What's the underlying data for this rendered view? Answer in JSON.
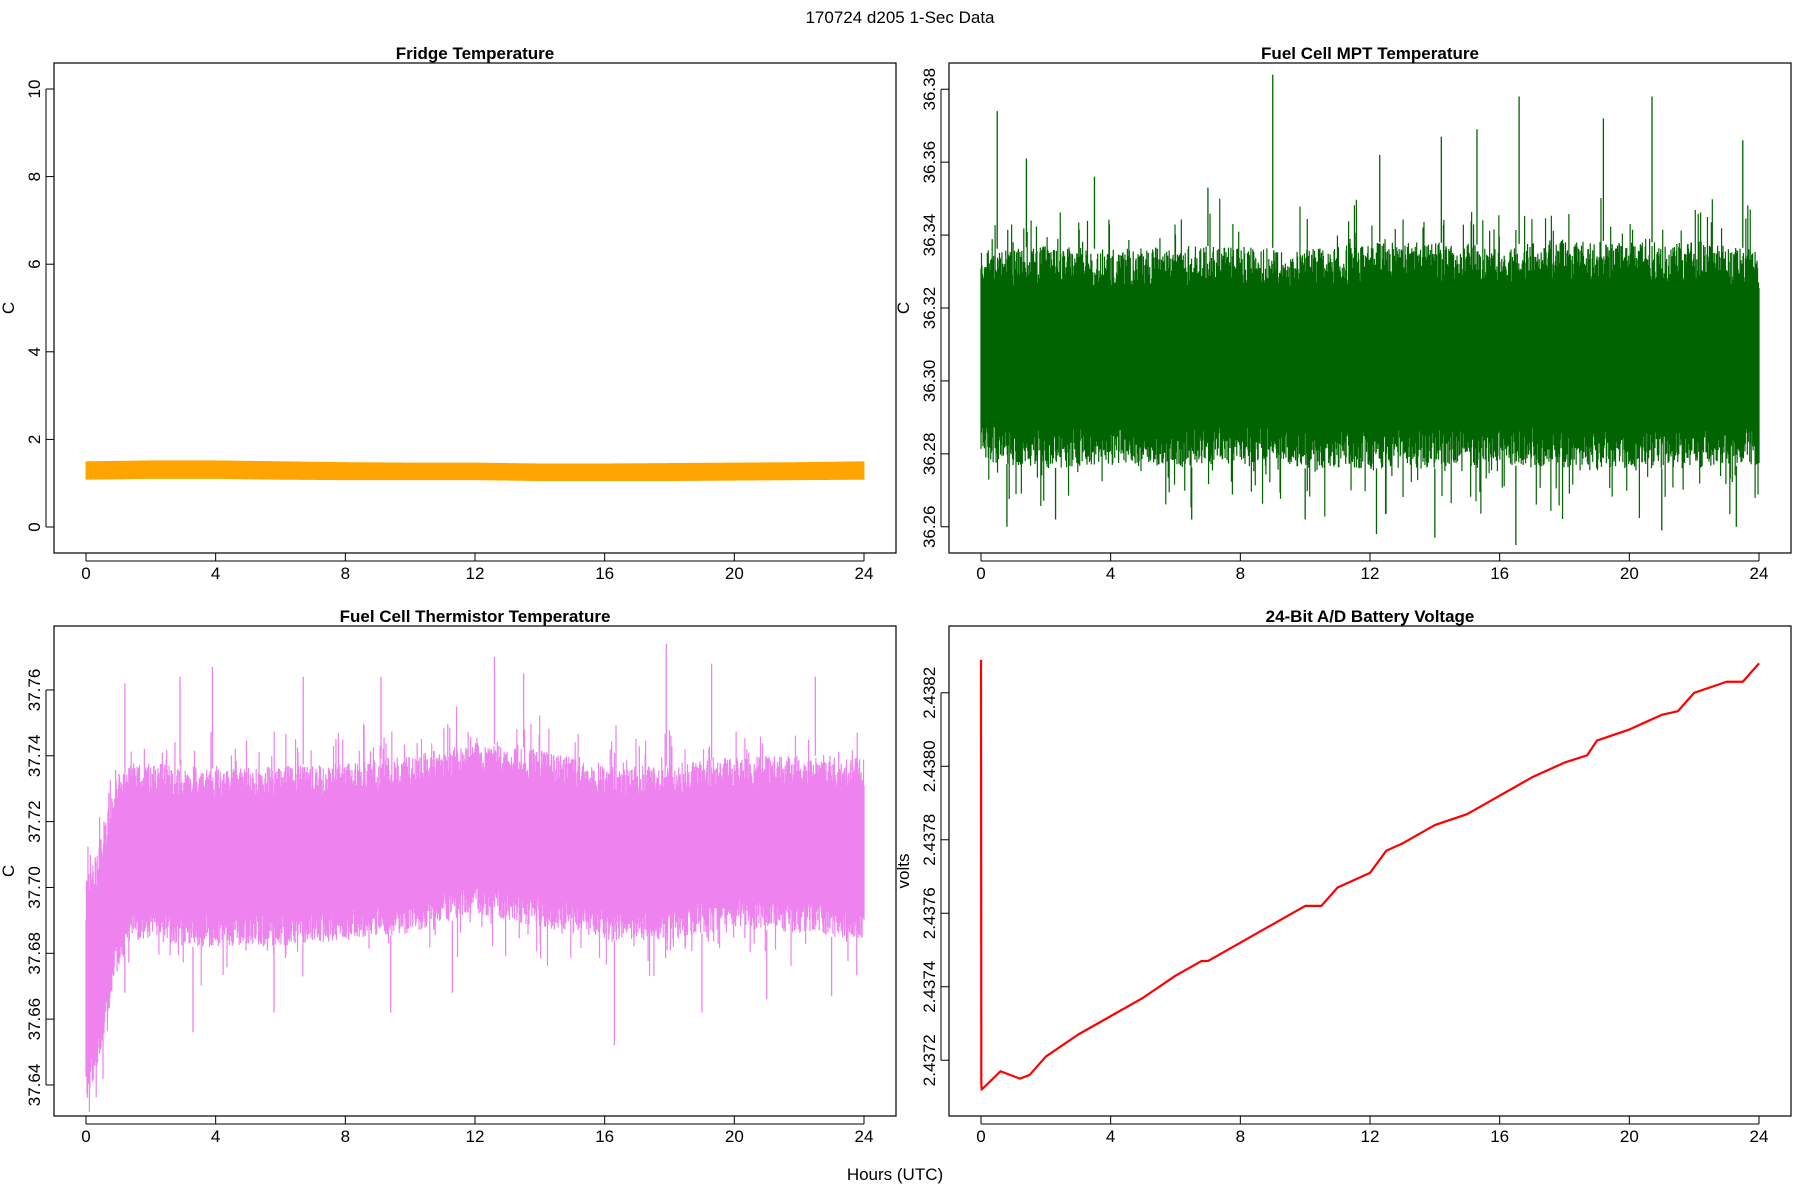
{
  "page": {
    "title": "170724   d205   1-Sec Data",
    "xlabel": "Hours (UTC)"
  },
  "chart_data": [
    {
      "type": "line",
      "title": "Fridge Temperature",
      "xlabel": "",
      "ylabel": "C",
      "xlim": [
        0,
        24
      ],
      "ylim": [
        0,
        10
      ],
      "x_ticks": [
        0,
        4,
        8,
        12,
        16,
        20,
        24
      ],
      "y_ticks": [
        0,
        2,
        4,
        6,
        8,
        10
      ],
      "y_tick_labels": [
        "0",
        "2",
        "4",
        "6",
        "8",
        "10"
      ],
      "color": "#FFA500",
      "series": [
        {
          "x": [
            0,
            2,
            4,
            6,
            8,
            10,
            12,
            14,
            16,
            18,
            20,
            22,
            24
          ],
          "low": [
            1.08,
            1.1,
            1.1,
            1.08,
            1.07,
            1.07,
            1.07,
            1.05,
            1.05,
            1.05,
            1.06,
            1.07,
            1.08
          ],
          "high": [
            1.5,
            1.52,
            1.52,
            1.5,
            1.48,
            1.47,
            1.47,
            1.45,
            1.45,
            1.46,
            1.47,
            1.48,
            1.5
          ]
        }
      ]
    },
    {
      "type": "line",
      "title": "Fuel Cell MPT Temperature",
      "xlabel": "",
      "ylabel": "C",
      "xlim": [
        0,
        24
      ],
      "ylim": [
        36.255,
        36.385
      ],
      "x_ticks": [
        0,
        4,
        8,
        12,
        16,
        20,
        24
      ],
      "y_ticks": [
        36.26,
        36.28,
        36.3,
        36.32,
        36.34,
        36.36,
        36.38
      ],
      "y_tick_labels": [
        "36.26",
        "36.28",
        "36.30",
        "36.32",
        "36.34",
        "36.36",
        "36.38"
      ],
      "color": "#006400",
      "series": [
        {
          "x": [
            0,
            2,
            4,
            6,
            8,
            10,
            12,
            14,
            16,
            18,
            20,
            22,
            24
          ],
          "low": [
            36.278,
            36.276,
            36.277,
            36.276,
            36.277,
            36.276,
            36.276,
            36.276,
            36.277,
            36.276,
            36.276,
            36.276,
            36.277
          ],
          "high": [
            36.336,
            36.337,
            36.336,
            36.337,
            36.337,
            36.336,
            36.338,
            36.338,
            36.337,
            36.339,
            36.338,
            36.338,
            36.336
          ],
          "spikes": [
            [
              0.5,
              36.374
            ],
            [
              1.4,
              36.361
            ],
            [
              3.5,
              36.356
            ],
            [
              7.0,
              36.353
            ],
            [
              9.0,
              36.384
            ],
            [
              12.3,
              36.362
            ],
            [
              14.2,
              36.367
            ],
            [
              15.3,
              36.369
            ],
            [
              16.6,
              36.378
            ],
            [
              19.2,
              36.372
            ],
            [
              20.7,
              36.378
            ],
            [
              23.5,
              36.366
            ]
          ],
          "dips": [
            [
              0.8,
              36.26
            ],
            [
              2.3,
              36.262
            ],
            [
              6.5,
              36.262
            ],
            [
              10.0,
              36.262
            ],
            [
              12.2,
              36.258
            ],
            [
              14.0,
              36.257
            ],
            [
              16.5,
              36.255
            ],
            [
              21.0,
              36.259
            ],
            [
              23.3,
              36.26
            ]
          ]
        }
      ]
    },
    {
      "type": "line",
      "title": "Fuel Cell Thermistor Temperature",
      "xlabel": "",
      "ylabel": "C",
      "xlim": [
        0,
        24
      ],
      "ylim": [
        37.633,
        37.777
      ],
      "x_ticks": [
        0,
        4,
        8,
        12,
        16,
        20,
        24
      ],
      "y_ticks": [
        37.64,
        37.66,
        37.68,
        37.7,
        37.72,
        37.74,
        37.76
      ],
      "y_tick_labels": [
        "37.64",
        "37.66",
        "37.68",
        "37.70",
        "37.72",
        "37.74",
        "37.76"
      ],
      "color": "#EE82EE",
      "series": [
        {
          "x": [
            0,
            0.3,
            0.6,
            1,
            1.5,
            2,
            3,
            4,
            6,
            8,
            10,
            12,
            14,
            16,
            18,
            20,
            22,
            24
          ],
          "low": [
            37.635,
            37.642,
            37.658,
            37.676,
            37.684,
            37.684,
            37.682,
            37.682,
            37.682,
            37.684,
            37.686,
            37.692,
            37.688,
            37.684,
            37.684,
            37.688,
            37.686,
            37.684
          ],
          "high": [
            37.702,
            37.71,
            37.722,
            37.735,
            37.738,
            37.738,
            37.737,
            37.736,
            37.737,
            37.738,
            37.74,
            37.744,
            37.742,
            37.737,
            37.737,
            37.74,
            37.74,
            37.74
          ],
          "spikes": [
            [
              1.2,
              37.762
            ],
            [
              2.9,
              37.764
            ],
            [
              3.9,
              37.767
            ],
            [
              6.7,
              37.764
            ],
            [
              9.1,
              37.764
            ],
            [
              12.6,
              37.77
            ],
            [
              13.5,
              37.765
            ],
            [
              17.9,
              37.774
            ],
            [
              19.3,
              37.768
            ],
            [
              22.5,
              37.764
            ]
          ],
          "dips": [
            [
              1.2,
              37.668
            ],
            [
              3.3,
              37.656
            ],
            [
              5.8,
              37.662
            ],
            [
              9.4,
              37.662
            ],
            [
              11.3,
              37.668
            ],
            [
              16.3,
              37.652
            ],
            [
              19.0,
              37.662
            ],
            [
              21.0,
              37.666
            ],
            [
              23.0,
              37.667
            ]
          ]
        }
      ]
    },
    {
      "type": "line",
      "title": "24-Bit A/D Battery Voltage",
      "xlabel": "",
      "ylabel": "volts",
      "xlim": [
        0,
        24
      ],
      "ylim": [
        2.43707,
        2.43836
      ],
      "x_ticks": [
        0,
        4,
        8,
        12,
        16,
        20,
        24
      ],
      "y_ticks": [
        2.4372,
        2.4374,
        2.4376,
        2.4378,
        2.438,
        2.4382
      ],
      "y_tick_labels": [
        "2.4372",
        "2.4374",
        "2.4376",
        "2.4378",
        "2.4380",
        "2.4382"
      ],
      "color": "#FF0000",
      "series": [
        {
          "x": [
            0,
            0.01,
            0.02,
            0.6,
            1.2,
            1.5,
            2.0,
            3.0,
            4.0,
            5.0,
            6.0,
            6.8,
            7.0,
            8.0,
            9.0,
            10.0,
            10.5,
            11.0,
            12.0,
            12.5,
            13.0,
            14.0,
            15.0,
            16.0,
            17.0,
            18.0,
            18.7,
            19.0,
            20.0,
            21.0,
            21.5,
            22.0,
            23.0,
            23.5,
            24.0
          ],
          "values": [
            2.43829,
            2.43714,
            2.43712,
            2.43717,
            2.43715,
            2.43716,
            2.43721,
            2.43727,
            2.43732,
            2.43737,
            2.43743,
            2.43747,
            2.43747,
            2.43752,
            2.43757,
            2.43762,
            2.43762,
            2.43767,
            2.43771,
            2.43777,
            2.43779,
            2.43784,
            2.43787,
            2.43792,
            2.43797,
            2.43801,
            2.43803,
            2.43807,
            2.4381,
            2.43814,
            2.43815,
            2.4382,
            2.43823,
            2.43823,
            2.43828
          ]
        }
      ]
    }
  ]
}
